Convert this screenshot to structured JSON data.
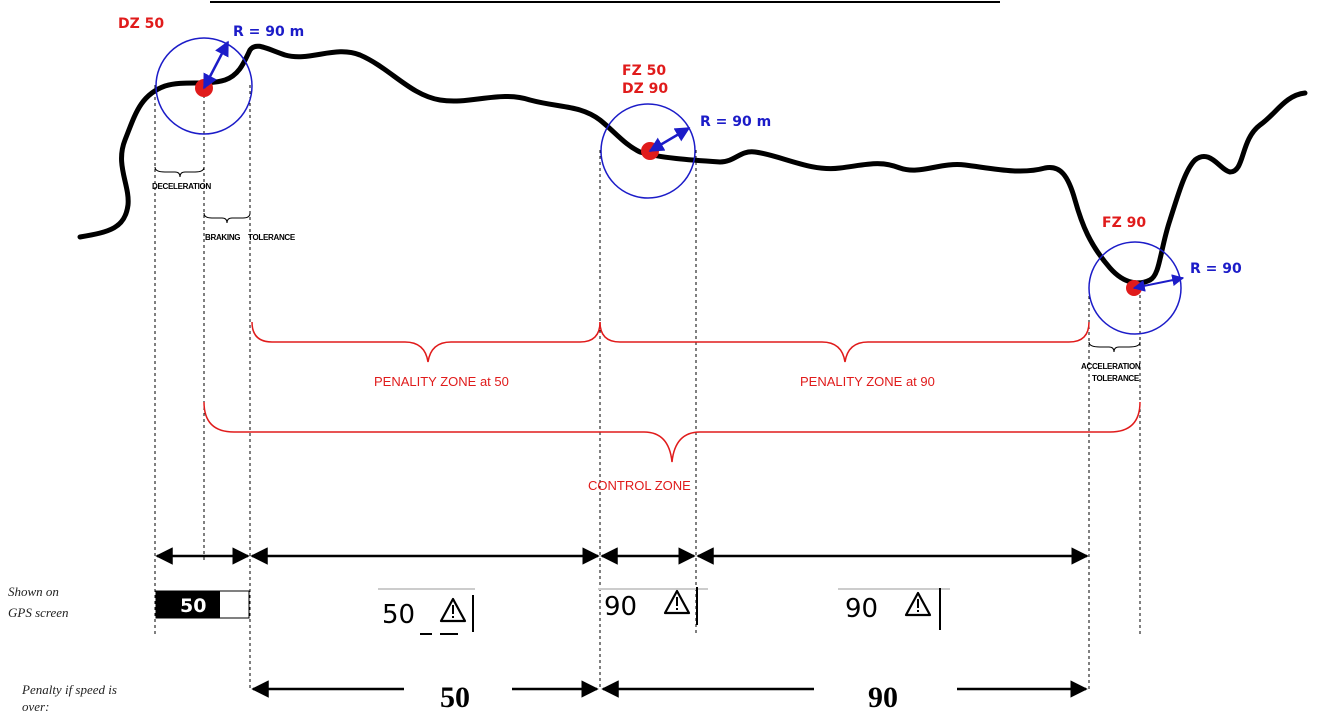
{
  "points": {
    "dz50": {
      "label": "DZ 50",
      "radius_label": "R = 90 m"
    },
    "mid": {
      "label_line1": "FZ 50",
      "label_line2": "DZ 90",
      "radius_label": "R = 90 m"
    },
    "fz90": {
      "label": "FZ 90",
      "radius_label": "R = 90"
    }
  },
  "small_labels": {
    "deceleration": "DECELERATION",
    "braking": "BRAKING",
    "tolerance": "TOLERANCE",
    "acceleration": "ACCELERATION",
    "acceleration_tolerance": "TOLERANCE"
  },
  "zones": {
    "penalty_50": "PENALITY ZONE at 50",
    "penalty_90": "PENALITY ZONE at 90",
    "control": "CONTROL  ZONE"
  },
  "gps": {
    "caption_line1": "Shown on",
    "caption_line2": "GPS screen",
    "displays": [
      "50",
      "50",
      "90",
      "90"
    ]
  },
  "penalty": {
    "caption_line1": "Penalty if speed is",
    "caption_line2": "over:",
    "values": [
      "50",
      "90"
    ]
  },
  "colors": {
    "road": "#000000",
    "zone_red": "#e01b1b",
    "circle_blue": "#1c1cc8"
  }
}
